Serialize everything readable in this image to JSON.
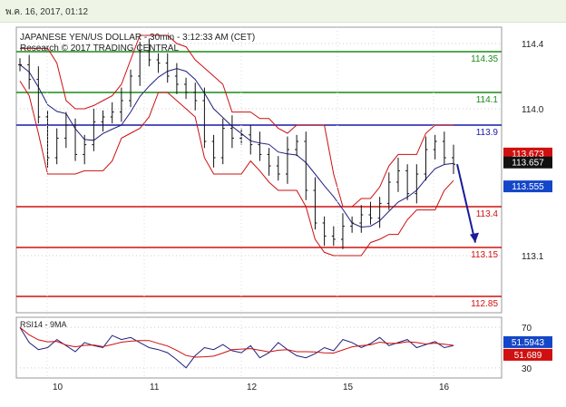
{
  "header": {
    "timestamp": "พ.ค. 16, 2017, 01:12"
  },
  "chart_data": [
    {
      "type": "candlestick",
      "title": "JAPANESE YEN/US DOLLAR - 30min - 3:12:33 AM (CET)",
      "subtitle": "Research © 2017 TRADING CENTRAL",
      "ylim": [
        112.75,
        114.5
      ],
      "yticks": [
        "114.4",
        "114.0",
        "113.1"
      ],
      "xticks": [
        "10",
        "11",
        "12",
        "15",
        "16"
      ],
      "levels": [
        {
          "value": 114.35,
          "label": "114.35",
          "color": "#1a8a1a"
        },
        {
          "value": 114.1,
          "label": "114.1",
          "color": "#1a8a1a"
        },
        {
          "value": 113.9,
          "label": "113.9",
          "color": "#1a1aa8"
        },
        {
          "value": 113.4,
          "label": "113.4",
          "color": "#d01010"
        },
        {
          "value": 113.15,
          "label": "113.15",
          "color": "#d01010"
        },
        {
          "value": 112.85,
          "label": "112.85",
          "color": "#d01010"
        }
      ],
      "price_boxes": [
        {
          "value": 113.673,
          "label": "113.673",
          "color": "#d01010"
        },
        {
          "value": 113.657,
          "label": "113.657",
          "color": "#111111"
        },
        {
          "value": 113.555,
          "label": "113.555",
          "color": "#1446c8"
        }
      ],
      "close_path": [
        114.27,
        114.18,
        113.95,
        113.7,
        113.82,
        113.9,
        113.72,
        113.78,
        113.92,
        113.95,
        113.98,
        114.05,
        114.2,
        114.35,
        114.3,
        114.28,
        114.2,
        114.15,
        114.1,
        114.05,
        113.8,
        113.7,
        113.88,
        113.82,
        113.84,
        113.78,
        113.72,
        113.65,
        113.6,
        113.75,
        113.8,
        113.5,
        113.3,
        113.22,
        113.2,
        113.28,
        113.3,
        113.35,
        113.33,
        113.42,
        113.55,
        113.62,
        113.48,
        113.6,
        113.75,
        113.8,
        113.7,
        113.66
      ],
      "forecast": {
        "from": 113.66,
        "to": 113.18,
        "color": "#1a1a9a"
      },
      "indicator": {
        "name": "RSI14 - 9MA",
        "ylim": [
          20,
          80
        ],
        "yticks": [
          "70",
          "30"
        ],
        "rsi": [
          70,
          55,
          48,
          50,
          58,
          52,
          46,
          55,
          52,
          50,
          62,
          58,
          60,
          55,
          50,
          48,
          45,
          38,
          30,
          42,
          50,
          48,
          53,
          47,
          45,
          52,
          40,
          45,
          55,
          48,
          42,
          40,
          44,
          50,
          47,
          58,
          55,
          50,
          54,
          60,
          52,
          55,
          58,
          50,
          53,
          56,
          50,
          52
        ],
        "last_rsi_label": "51.5943",
        "last_ma_label": "51.689"
      }
    }
  ]
}
